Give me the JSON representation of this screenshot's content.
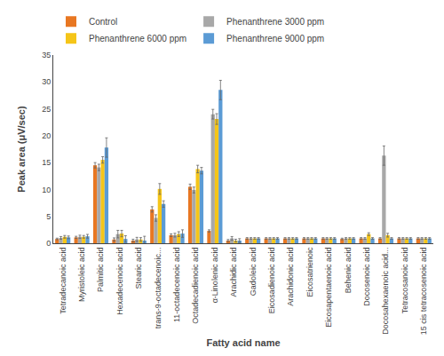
{
  "chart_data": {
    "type": "bar",
    "xlabel": "Fatty acid name",
    "ylabel": "Peak area (μV/sec)",
    "categories": [
      "Tetradecanoic acid",
      "Myristoleic acid",
      "Palmitic acid",
      "Hexadecenoic acid",
      "Stearic acid",
      "trans-9-octadecenoic...",
      "11-octadecenoic acid",
      "Octadecadienoic acid",
      "α-Linolenic acid",
      "Arachidic acid",
      "Gadoleic acid",
      "Eicosadienoic acid",
      "Arachidonic acid",
      "Eicosatrienoic",
      "Eicosapentaenoic acid",
      "Behenic acid",
      "Docosenoic acid",
      "Docosahexaenoic acid...",
      "Tetracosanoic acid",
      "15 cis tetracosenoic acid"
    ],
    "series": [
      {
        "name": "Control",
        "color": "#E87722",
        "values": [
          0.8,
          1.1,
          14.5,
          0.7,
          0.5,
          6.3,
          1.5,
          10.5,
          2.3,
          0.5,
          0.9,
          0.9,
          0.9,
          0.9,
          0.9,
          0.8,
          0.9,
          0.9,
          0.9,
          0.9
        ],
        "errors": [
          0.15,
          0.2,
          0.5,
          0.3,
          0.25,
          0.5,
          0.25,
          0.5,
          0.2,
          0.2,
          0.15,
          0.15,
          0.15,
          0.15,
          0.15,
          0.15,
          0.15,
          0.15,
          0.15,
          0.15
        ]
      },
      {
        "name": "Phenanthrene 3000 ppm",
        "color": "#A8A8A8",
        "values": [
          1.0,
          1.2,
          14.1,
          1.7,
          0.7,
          4.7,
          1.5,
          9.9,
          24.0,
          0.9,
          0.9,
          0.9,
          0.9,
          0.9,
          0.9,
          0.9,
          0.9,
          16.3,
          0.9,
          0.9
        ],
        "errors": [
          0.25,
          0.3,
          0.6,
          0.7,
          0.4,
          0.6,
          0.35,
          0.55,
          0.9,
          0.35,
          0.15,
          0.15,
          0.15,
          0.15,
          0.15,
          0.15,
          0.15,
          1.8,
          0.15,
          0.15
        ]
      },
      {
        "name": "Phenanthrene 6000 ppm",
        "color": "#F5C518",
        "values": [
          1.2,
          1.2,
          15.5,
          1.8,
          0.7,
          10.1,
          1.7,
          13.8,
          23.1,
          0.5,
          0.9,
          0.9,
          0.9,
          0.9,
          0.9,
          0.9,
          1.7,
          1.5,
          0.9,
          0.9
        ],
        "errors": [
          0.25,
          0.25,
          0.6,
          0.6,
          0.35,
          1.0,
          0.45,
          0.7,
          1.0,
          0.25,
          0.15,
          0.15,
          0.15,
          0.15,
          0.15,
          0.15,
          0.25,
          0.35,
          0.15,
          0.15
        ]
      },
      {
        "name": "Phenanthrene 9000 ppm",
        "color": "#5B9BD5",
        "values": [
          1.1,
          1.3,
          17.8,
          0.8,
          0.5,
          7.3,
          1.8,
          13.5,
          28.5,
          0.5,
          0.9,
          0.9,
          0.9,
          0.9,
          0.9,
          0.9,
          0.9,
          0.9,
          0.9,
          0.9
        ],
        "errors": [
          0.25,
          0.35,
          1.8,
          0.6,
          0.8,
          0.6,
          0.7,
          0.6,
          1.8,
          0.35,
          0.15,
          0.15,
          0.15,
          0.15,
          0.15,
          0.15,
          0.15,
          0.15,
          0.15,
          0.15
        ]
      }
    ],
    "ylim": [
      0,
      35
    ],
    "yticks": [
      0,
      5,
      10,
      15,
      20,
      25,
      30,
      35
    ],
    "grid": false,
    "legend": "top"
  }
}
